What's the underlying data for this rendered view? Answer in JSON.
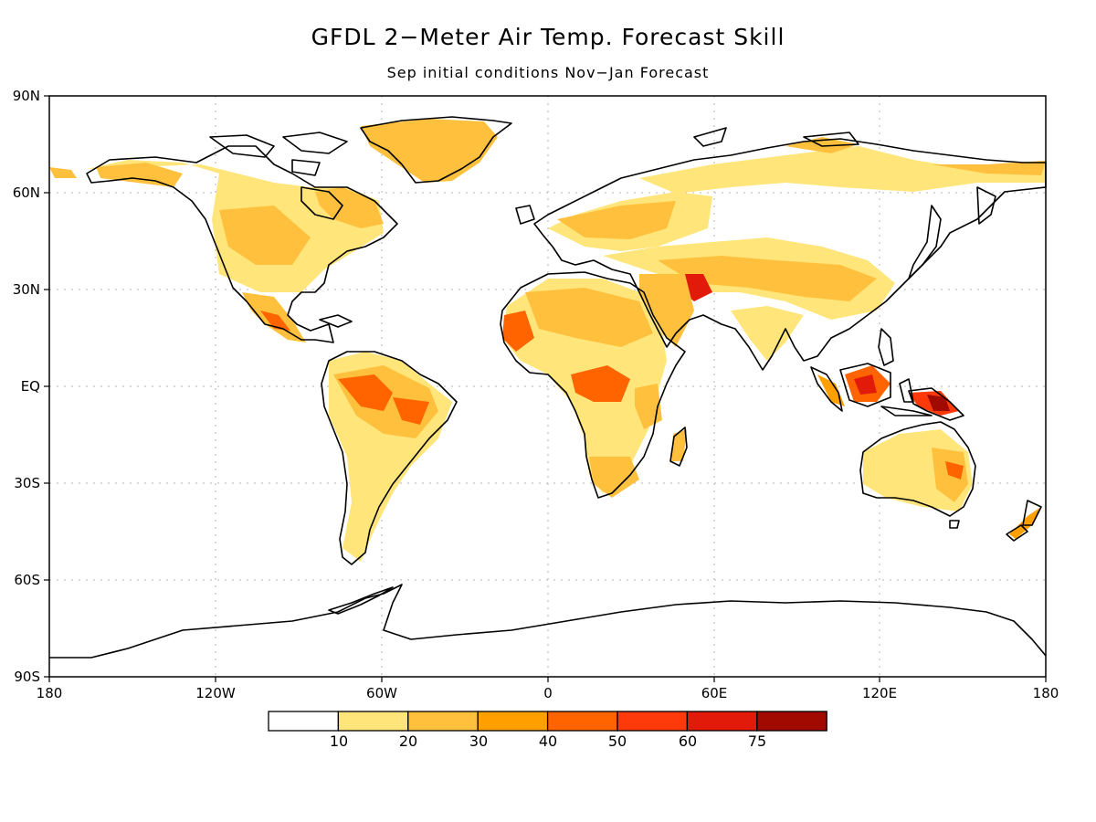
{
  "title": "GFDL 2−Meter Air Temp. Forecast Skill",
  "subtitle": "Sep initial conditions   Nov−Jan Forecast",
  "y_ticks": [
    "90N",
    "60N",
    "30N",
    "EQ",
    "30S",
    "60S",
    "90S"
  ],
  "x_ticks": [
    "180",
    "120W",
    "60W",
    "0",
    "60E",
    "120E",
    "180"
  ],
  "colorbar": {
    "labels": [
      "10",
      "20",
      "30",
      "40",
      "50",
      "60",
      "75"
    ],
    "colors": [
      "#ffffff",
      "#ffe57a",
      "#ffc13d",
      "#ffa000",
      "#ff6400",
      "#ff3a0a",
      "#e21a0a",
      "#a00a00"
    ]
  }
}
